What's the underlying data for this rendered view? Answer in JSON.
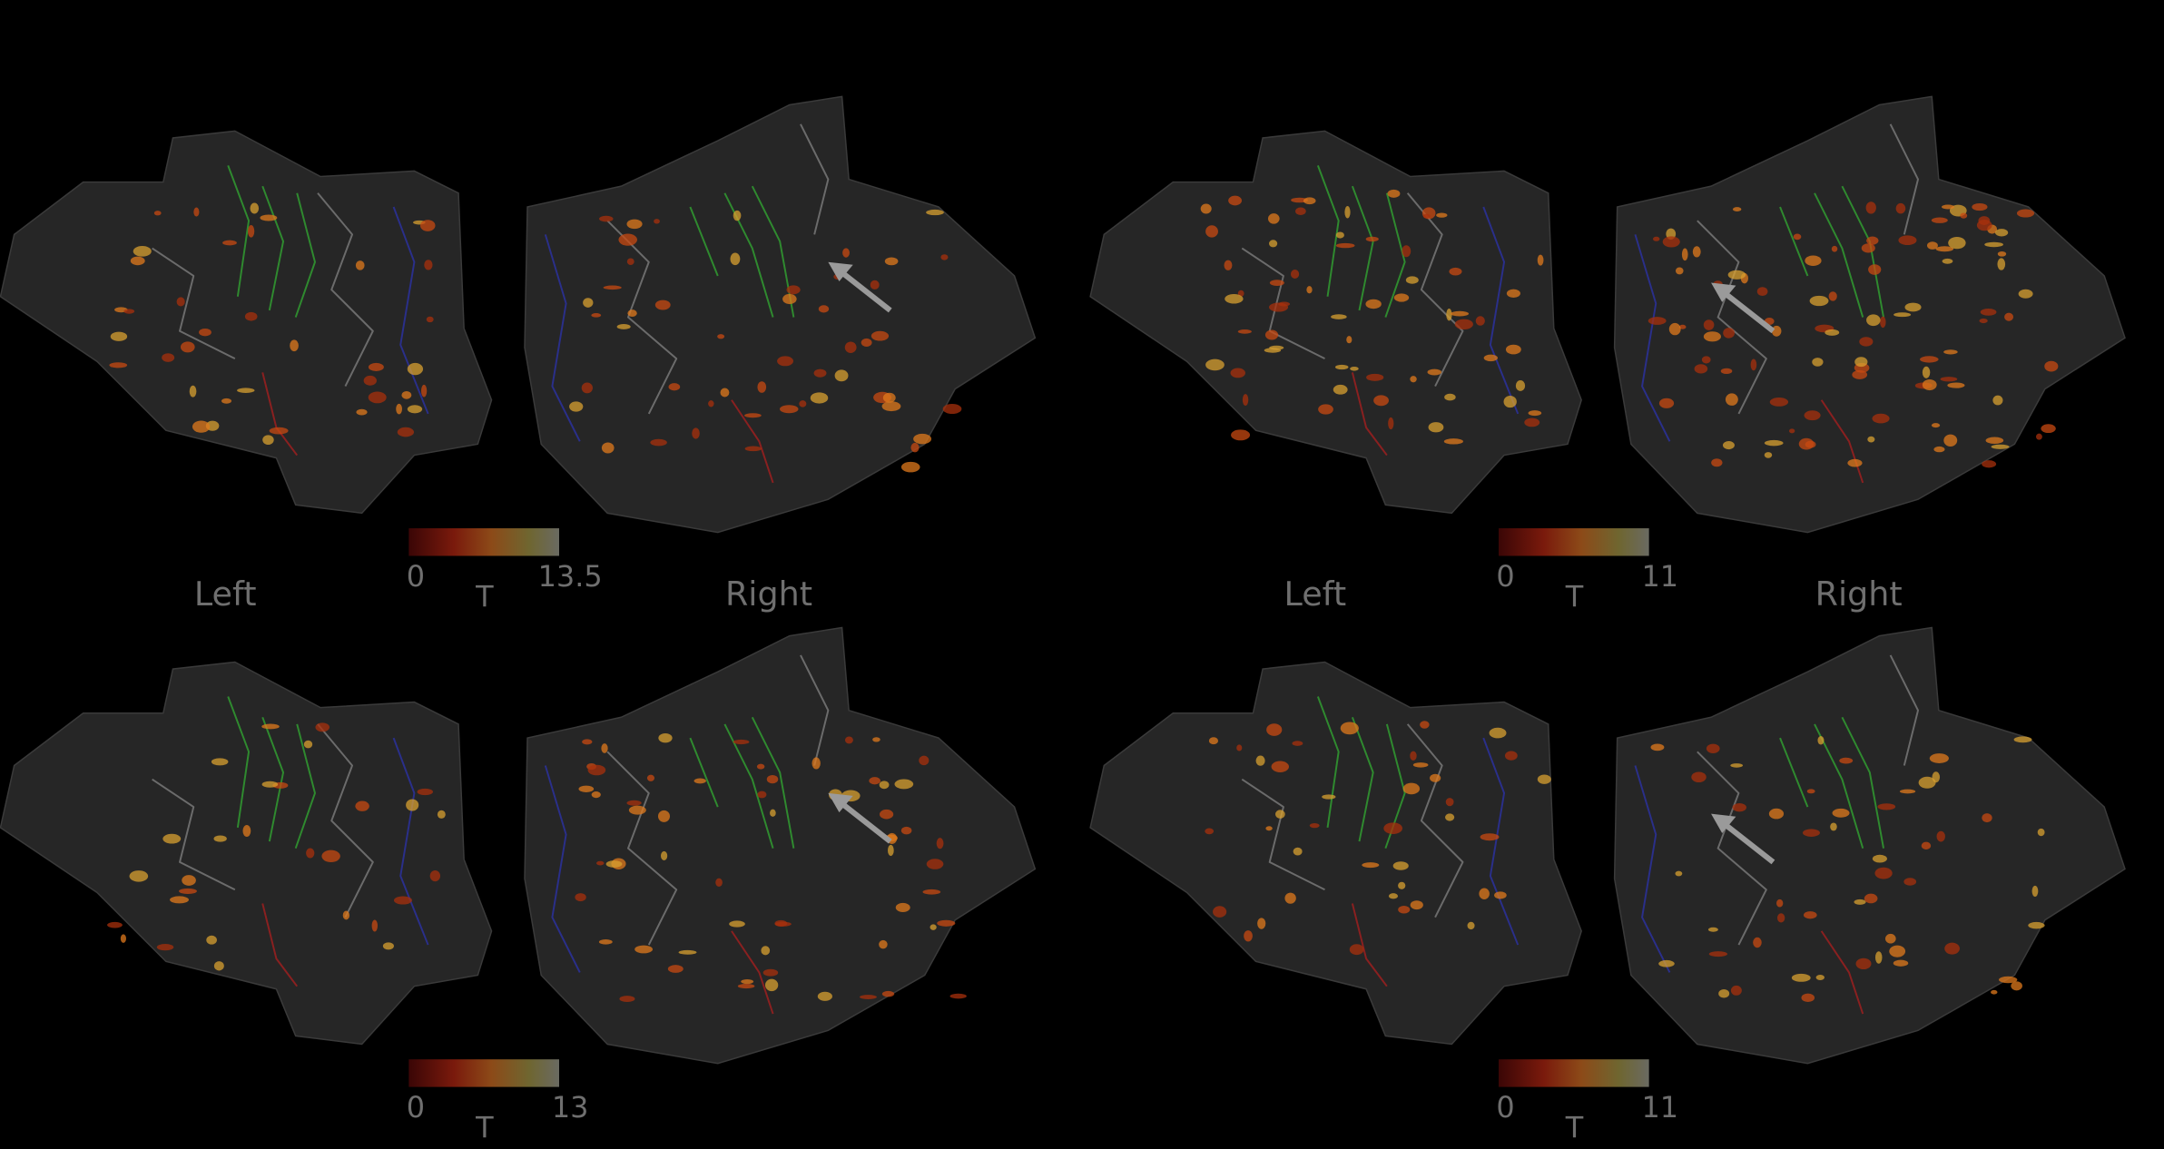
{
  "panels": [
    {
      "colorbar": {
        "ticks": [
          0,
          13.5
        ],
        "label": "T"
      },
      "hemisphere_labels": [
        "Left",
        "Right"
      ]
    },
    {
      "colorbar": {
        "ticks": [
          0,
          11
        ],
        "label": "T"
      },
      "hemisphere_labels": [
        "Left",
        "Right"
      ]
    },
    {
      "colorbar": {
        "ticks": [
          0,
          13
        ],
        "label": "T"
      }
    },
    {
      "colorbar": {
        "ticks": [
          0,
          11
        ],
        "label": "T"
      }
    }
  ]
}
